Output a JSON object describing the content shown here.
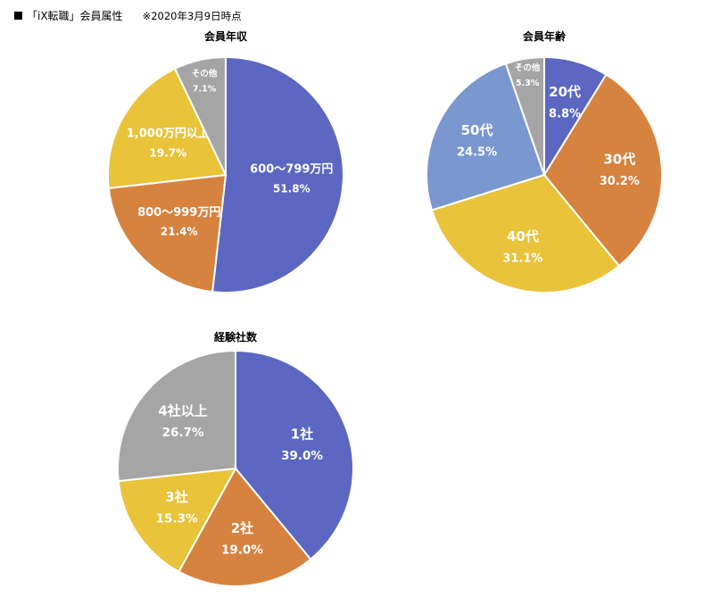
{
  "header": {
    "title": "「iX転職」会員属性",
    "note": "※2020年3月9日時点"
  },
  "chart_data": [
    {
      "type": "pie",
      "title": "会員年収",
      "start_angle_deg": 0,
      "direction": "clockwise",
      "slices": [
        {
          "label": "600～799万円",
          "value": 51.8,
          "display": "51.8%",
          "color": "#5B67C1"
        },
        {
          "label": "800～999万円",
          "value": 21.4,
          "display": "21.4%",
          "color": "#D5833F"
        },
        {
          "label": "1,000万円以上",
          "value": 19.7,
          "display": "19.7%",
          "color": "#E9C33A"
        },
        {
          "label": "その他",
          "value": 7.1,
          "display": "7.1%",
          "color": "#A5A5A5"
        }
      ]
    },
    {
      "type": "pie",
      "title": "会員年齢",
      "start_angle_deg": 0,
      "direction": "clockwise",
      "slices": [
        {
          "label": "20代",
          "value": 8.8,
          "display": "8.8%",
          "color": "#5B67C1"
        },
        {
          "label": "30代",
          "value": 30.2,
          "display": "30.2%",
          "color": "#D5833F"
        },
        {
          "label": "40代",
          "value": 31.1,
          "display": "31.1%",
          "color": "#E9C33A"
        },
        {
          "label": "50代",
          "value": 24.5,
          "display": "24.5%",
          "color": "#7B97D0"
        },
        {
          "label": "その他",
          "value": 5.3,
          "display": "5.3%",
          "color": "#A5A5A5"
        }
      ]
    },
    {
      "type": "pie",
      "title": "経験社数",
      "start_angle_deg": 0,
      "direction": "clockwise",
      "slices": [
        {
          "label": "1社",
          "value": 39.0,
          "display": "39.0%",
          "color": "#5B67C1"
        },
        {
          "label": "2社",
          "value": 19.0,
          "display": "19.0%",
          "color": "#D5833F"
        },
        {
          "label": "3社",
          "value": 15.3,
          "display": "15.3%",
          "color": "#E9C33A"
        },
        {
          "label": "4社以上",
          "value": 26.7,
          "display": "26.7%",
          "color": "#A5A5A5"
        }
      ]
    }
  ]
}
